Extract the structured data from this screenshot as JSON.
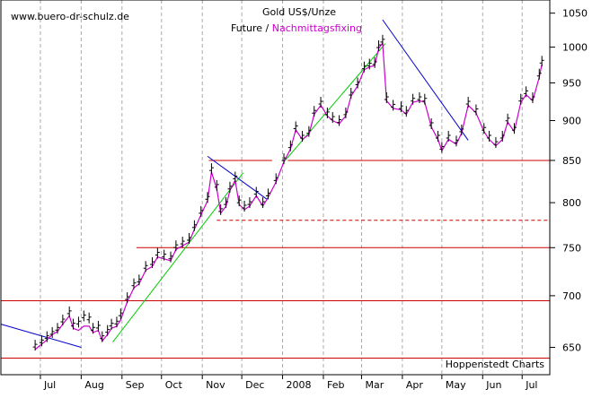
{
  "source_label": "www.buero-dr-schulz.de",
  "credit": "Hoppenstedt Charts",
  "chart_data": {
    "type": "line",
    "title": "Gold US$/Unze",
    "subtitle_prefix": "Future / ",
    "subtitle_highlight": "Nachmittagsfixing",
    "y_log_scale": true,
    "ylim": [
      625,
      1070
    ],
    "y_ticks": [
      650,
      700,
      750,
      800,
      850,
      900,
      950,
      1000,
      1050
    ],
    "y_tick_labels": [
      "650",
      "700",
      "750",
      "800",
      "850",
      "900",
      "950",
      "1000",
      "1050"
    ],
    "x_range": [
      "2007-06-01",
      "2008-07-22"
    ],
    "x_ticks": [
      {
        "label": "Jul",
        "date": "2007-07-01"
      },
      {
        "label": "Aug",
        "date": "2007-08-01"
      },
      {
        "label": "Sep",
        "date": "2007-09-01"
      },
      {
        "label": "Oct",
        "date": "2007-10-01"
      },
      {
        "label": "Nov",
        "date": "2007-11-01"
      },
      {
        "label": "Dec",
        "date": "2007-12-01"
      },
      {
        "label": "2008",
        "date": "2008-01-01"
      },
      {
        "label": "Feb",
        "date": "2008-02-01"
      },
      {
        "label": "Mar",
        "date": "2008-03-01"
      },
      {
        "label": "Apr",
        "date": "2008-04-01"
      },
      {
        "label": "May",
        "date": "2008-05-01"
      },
      {
        "label": "Jun",
        "date": "2008-06-01"
      },
      {
        "label": "Jul",
        "date": "2008-07-01"
      }
    ],
    "grid": {
      "vertical_dashed": true
    },
    "series": [
      {
        "name": "Future",
        "color": "#000000",
        "style": "ohlc",
        "points": [
          [
            "2007-06-27",
            652
          ],
          [
            "2007-07-02",
            656
          ],
          [
            "2007-07-06",
            660
          ],
          [
            "2007-07-10",
            664
          ],
          [
            "2007-07-14",
            668
          ],
          [
            "2007-07-18",
            676
          ],
          [
            "2007-07-23",
            684
          ],
          [
            "2007-07-26",
            672
          ],
          [
            "2007-07-30",
            674
          ],
          [
            "2007-08-03",
            680
          ],
          [
            "2007-08-07",
            678
          ],
          [
            "2007-08-10",
            668
          ],
          [
            "2007-08-14",
            670
          ],
          [
            "2007-08-17",
            660
          ],
          [
            "2007-08-21",
            666
          ],
          [
            "2007-08-24",
            672
          ],
          [
            "2007-08-28",
            674
          ],
          [
            "2007-08-31",
            682
          ],
          [
            "2007-09-05",
            698
          ],
          [
            "2007-09-10",
            712
          ],
          [
            "2007-09-14",
            716
          ],
          [
            "2007-09-19",
            730
          ],
          [
            "2007-09-24",
            734
          ],
          [
            "2007-09-28",
            744
          ],
          [
            "2007-10-03",
            742
          ],
          [
            "2007-10-08",
            740
          ],
          [
            "2007-10-12",
            752
          ],
          [
            "2007-10-17",
            756
          ],
          [
            "2007-10-22",
            760
          ],
          [
            "2007-10-26",
            774
          ],
          [
            "2007-10-31",
            790
          ],
          [
            "2007-11-05",
            806
          ],
          [
            "2007-11-08",
            840
          ],
          [
            "2007-11-12",
            820
          ],
          [
            "2007-11-15",
            792
          ],
          [
            "2007-11-19",
            800
          ],
          [
            "2007-11-22",
            818
          ],
          [
            "2007-11-26",
            830
          ],
          [
            "2007-11-29",
            802
          ],
          [
            "2007-12-03",
            796
          ],
          [
            "2007-12-07",
            800
          ],
          [
            "2007-12-12",
            812
          ],
          [
            "2007-12-17",
            800
          ],
          [
            "2007-12-21",
            810
          ],
          [
            "2007-12-27",
            828
          ],
          [
            "2008-01-02",
            852
          ],
          [
            "2008-01-07",
            868
          ],
          [
            "2008-01-11",
            892
          ],
          [
            "2008-01-16",
            880
          ],
          [
            "2008-01-21",
            886
          ],
          [
            "2008-01-25",
            912
          ],
          [
            "2008-01-30",
            924
          ],
          [
            "2008-02-04",
            910
          ],
          [
            "2008-02-08",
            904
          ],
          [
            "2008-02-13",
            900
          ],
          [
            "2008-02-18",
            910
          ],
          [
            "2008-02-22",
            936
          ],
          [
            "2008-02-27",
            950
          ],
          [
            "2008-03-03",
            972
          ],
          [
            "2008-03-07",
            976
          ],
          [
            "2008-03-11",
            978
          ],
          [
            "2008-03-14",
            1002
          ],
          [
            "2008-03-17",
            1010
          ],
          [
            "2008-03-20",
            930
          ],
          [
            "2008-03-25",
            920
          ],
          [
            "2008-03-31",
            918
          ],
          [
            "2008-04-04",
            912
          ],
          [
            "2008-04-09",
            928
          ],
          [
            "2008-04-14",
            930
          ],
          [
            "2008-04-18",
            928
          ],
          [
            "2008-04-23",
            896
          ],
          [
            "2008-04-28",
            880
          ],
          [
            "2008-05-01",
            866
          ],
          [
            "2008-05-06",
            880
          ],
          [
            "2008-05-12",
            874
          ],
          [
            "2008-05-16",
            888
          ],
          [
            "2008-05-21",
            924
          ],
          [
            "2008-05-27",
            914
          ],
          [
            "2008-06-02",
            890
          ],
          [
            "2008-06-06",
            880
          ],
          [
            "2008-06-11",
            872
          ],
          [
            "2008-06-16",
            880
          ],
          [
            "2008-06-20",
            902
          ],
          [
            "2008-06-25",
            890
          ],
          [
            "2008-06-30",
            928
          ],
          [
            "2008-07-04",
            938
          ],
          [
            "2008-07-09",
            930
          ],
          [
            "2008-07-14",
            962
          ],
          [
            "2008-07-16",
            980
          ]
        ]
      },
      {
        "name": "Nachmittagsfixing",
        "color": "#cc00cc",
        "style": "line",
        "points": [
          [
            "2007-06-27",
            648
          ],
          [
            "2007-07-02",
            653
          ],
          [
            "2007-07-06",
            657
          ],
          [
            "2007-07-10",
            662
          ],
          [
            "2007-07-14",
            665
          ],
          [
            "2007-07-18",
            672
          ],
          [
            "2007-07-23",
            680
          ],
          [
            "2007-07-26",
            668
          ],
          [
            "2007-07-30",
            666
          ],
          [
            "2007-08-03",
            670
          ],
          [
            "2007-08-07",
            670
          ],
          [
            "2007-08-10",
            664
          ],
          [
            "2007-08-14",
            666
          ],
          [
            "2007-08-17",
            656
          ],
          [
            "2007-08-21",
            662
          ],
          [
            "2007-08-24",
            668
          ],
          [
            "2007-08-28",
            670
          ],
          [
            "2007-08-31",
            676
          ],
          [
            "2007-09-05",
            694
          ],
          [
            "2007-09-10",
            708
          ],
          [
            "2007-09-14",
            712
          ],
          [
            "2007-09-19",
            726
          ],
          [
            "2007-09-24",
            730
          ],
          [
            "2007-09-28",
            740
          ],
          [
            "2007-10-03",
            738
          ],
          [
            "2007-10-08",
            736
          ],
          [
            "2007-10-12",
            748
          ],
          [
            "2007-10-17",
            752
          ],
          [
            "2007-10-22",
            756
          ],
          [
            "2007-10-26",
            770
          ],
          [
            "2007-10-31",
            786
          ],
          [
            "2007-11-05",
            802
          ],
          [
            "2007-11-08",
            836
          ],
          [
            "2007-11-12",
            816
          ],
          [
            "2007-11-15",
            788
          ],
          [
            "2007-11-19",
            796
          ],
          [
            "2007-11-22",
            814
          ],
          [
            "2007-11-26",
            826
          ],
          [
            "2007-11-29",
            798
          ],
          [
            "2007-12-03",
            792
          ],
          [
            "2007-12-07",
            796
          ],
          [
            "2007-12-12",
            808
          ],
          [
            "2007-12-17",
            796
          ],
          [
            "2007-12-21",
            806
          ],
          [
            "2007-12-27",
            824
          ],
          [
            "2008-01-02",
            848
          ],
          [
            "2008-01-07",
            864
          ],
          [
            "2008-01-11",
            888
          ],
          [
            "2008-01-16",
            876
          ],
          [
            "2008-01-21",
            882
          ],
          [
            "2008-01-25",
            908
          ],
          [
            "2008-01-30",
            920
          ],
          [
            "2008-02-04",
            906
          ],
          [
            "2008-02-08",
            900
          ],
          [
            "2008-02-13",
            896
          ],
          [
            "2008-02-18",
            906
          ],
          [
            "2008-02-22",
            932
          ],
          [
            "2008-02-27",
            946
          ],
          [
            "2008-03-03",
            968
          ],
          [
            "2008-03-07",
            972
          ],
          [
            "2008-03-11",
            974
          ],
          [
            "2008-03-14",
            998
          ],
          [
            "2008-03-17",
            1006
          ],
          [
            "2008-03-20",
            926
          ],
          [
            "2008-03-25",
            916
          ],
          [
            "2008-03-31",
            914
          ],
          [
            "2008-04-04",
            908
          ],
          [
            "2008-04-09",
            924
          ],
          [
            "2008-04-14",
            926
          ],
          [
            "2008-04-18",
            924
          ],
          [
            "2008-04-23",
            892
          ],
          [
            "2008-04-28",
            876
          ],
          [
            "2008-05-01",
            862
          ],
          [
            "2008-05-06",
            876
          ],
          [
            "2008-05-12",
            870
          ],
          [
            "2008-05-16",
            884
          ],
          [
            "2008-05-21",
            920
          ],
          [
            "2008-05-27",
            910
          ],
          [
            "2008-06-02",
            886
          ],
          [
            "2008-06-06",
            876
          ],
          [
            "2008-06-11",
            868
          ],
          [
            "2008-06-16",
            876
          ],
          [
            "2008-06-20",
            898
          ],
          [
            "2008-06-25",
            886
          ],
          [
            "2008-06-30",
            924
          ],
          [
            "2008-07-04",
            934
          ],
          [
            "2008-07-09",
            926
          ],
          [
            "2008-07-14",
            958
          ],
          [
            "2008-07-16",
            976
          ]
        ]
      }
    ],
    "reference_lines": [
      {
        "value": 850,
        "style": "solid",
        "color": "#cc0000",
        "from": "2008-01-05",
        "to": "2008-07-22"
      },
      {
        "value": 850,
        "style": "solid",
        "color": "#cc0000",
        "from": "2007-11-06",
        "to": "2007-12-24"
      },
      {
        "value": 780,
        "style": "dashed",
        "color": "#cc0000",
        "from": "2007-11-12",
        "to": "2008-07-22"
      },
      {
        "value": 750,
        "style": "solid",
        "color": "#cc0000",
        "from": "2007-09-12",
        "to": "2008-07-22"
      },
      {
        "value": 695,
        "style": "solid",
        "color": "#cc0000",
        "from": "2007-06-01",
        "to": "2008-07-22"
      },
      {
        "value": 640,
        "style": "solid",
        "color": "#cc0000",
        "from": "2007-06-01",
        "to": "2008-07-22"
      }
    ],
    "trend_lines": [
      {
        "color": "#0000cc",
        "from": [
          "2007-06-01",
          672
        ],
        "to": [
          "2007-08-01",
          650
        ]
      },
      {
        "color": "#00cc00",
        "from": [
          "2007-08-25",
          655
        ],
        "to": [
          "2007-12-02",
          835
        ]
      },
      {
        "color": "#0000cc",
        "from": [
          "2007-11-05",
          855
        ],
        "to": [
          "2007-12-20",
          804
        ]
      },
      {
        "color": "#00cc00",
        "from": [
          "2008-01-03",
          850
        ],
        "to": [
          "2008-03-19",
          1005
        ]
      },
      {
        "color": "#0000cc",
        "from": [
          "2008-03-17",
          1040
        ],
        "to": [
          "2008-05-21",
          875
        ]
      }
    ]
  }
}
